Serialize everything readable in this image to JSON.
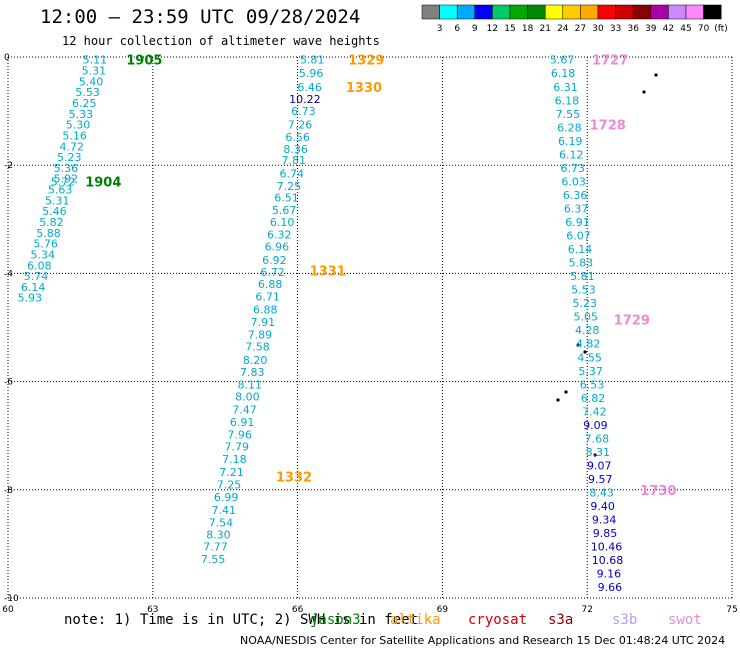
{
  "header": {
    "title": "12:00 — 23:59 UTC 09/28/2024",
    "subtitle": "12 hour collection of altimeter wave heights"
  },
  "colorbar": {
    "labels": [
      "3",
      "6",
      "9",
      "12",
      "15",
      "18",
      "21",
      "24",
      "27",
      "30",
      "33",
      "36",
      "39",
      "42",
      "45",
      "70"
    ],
    "unit": "(ft)",
    "colors": [
      "#7f7f7f",
      "#00ffff",
      "#00aaff",
      "#0000ff",
      "#00cc66",
      "#00aa00",
      "#008800",
      "#ffff00",
      "#ffcc00",
      "#ffaa00",
      "#ff0000",
      "#cc0000",
      "#880000",
      "#aa00aa",
      "#cc88ff",
      "#ff88ff",
      "#000000"
    ]
  },
  "footer": {
    "note": "note:  1) Time is in UTC; 2) SWH is in feet",
    "credit": "NOAA/NESDIS Center for Satellite Applications and Research   15 Dec 01:48:24 UTC 2024"
  },
  "legend": [
    {
      "name": "jason3",
      "color": "#008000"
    },
    {
      "name": "altika",
      "color": "#ff9900"
    },
    {
      "name": "cryosat",
      "color": "#cc0000"
    },
    {
      "name": "s3a",
      "color": "#880000"
    },
    {
      "name": "s3b",
      "color": "#bb99ee"
    },
    {
      "name": "swot",
      "color": "#ee88dd"
    }
  ],
  "chart_data": {
    "type": "scatter",
    "title": "12:00 — 23:59 UTC 09/28/2024",
    "subtitle": "12 hour collection of altimeter wave heights",
    "xlim": [
      60,
      75
    ],
    "ylim": [
      -10,
      0
    ],
    "xticks": [
      "60",
      "63",
      "66",
      "69",
      "72",
      "75"
    ],
    "yticks": [
      "0",
      "-2",
      "-4",
      "-6",
      "-8",
      "-10"
    ],
    "grid": true,
    "tracks": [
      {
        "satellite": "jason3",
        "color": "#00aacc",
        "times": [
          {
            "label": "1905",
            "x": 62.45,
            "y": -0.05,
            "color": "#008000"
          },
          {
            "label": "1904",
            "x": 61.6,
            "y": -2.3,
            "color": "#008000"
          }
        ],
        "points": [
          {
            "x": 61.8,
            "y": -0.05,
            "v": "5.11"
          },
          {
            "x": 61.78,
            "y": -0.25,
            "v": "5.31"
          },
          {
            "x": 61.72,
            "y": -0.45,
            "v": "5.40"
          },
          {
            "x": 61.65,
            "y": -0.65,
            "v": "5.53"
          },
          {
            "x": 61.58,
            "y": -0.85,
            "v": "6.25"
          },
          {
            "x": 61.51,
            "y": -1.05,
            "v": "5.33"
          },
          {
            "x": 61.45,
            "y": -1.25,
            "v": "5.30"
          },
          {
            "x": 61.38,
            "y": -1.45,
            "v": "5.16"
          },
          {
            "x": 61.32,
            "y": -1.65,
            "v": "4.72"
          },
          {
            "x": 61.27,
            "y": -1.85,
            "v": "5.23"
          },
          {
            "x": 61.2,
            "y": -2.05,
            "v": "5.36"
          },
          {
            "x": 61.2,
            "y": -2.25,
            "v": "5.92"
          },
          {
            "x": 61.14,
            "y": -2.3,
            "v": "5.72"
          },
          {
            "x": 61.08,
            "y": -2.45,
            "v": "5.63"
          },
          {
            "x": 61.02,
            "y": -2.65,
            "v": "5.31"
          },
          {
            "x": 60.96,
            "y": -2.85,
            "v": "5.46"
          },
          {
            "x": 60.9,
            "y": -3.05,
            "v": "5.82"
          },
          {
            "x": 60.84,
            "y": -3.25,
            "v": "5.88"
          },
          {
            "x": 60.78,
            "y": -3.45,
            "v": "5.76"
          },
          {
            "x": 60.72,
            "y": -3.65,
            "v": "5.34"
          },
          {
            "x": 60.65,
            "y": -3.85,
            "v": "6.08"
          },
          {
            "x": 60.58,
            "y": -4.05,
            "v": "5.74"
          },
          {
            "x": 60.52,
            "y": -4.25,
            "v": "6.14"
          },
          {
            "x": 60.45,
            "y": -4.45,
            "v": "5.93"
          }
        ]
      },
      {
        "satellite": "altika",
        "color": "#00aacc",
        "times": [
          {
            "label": "1329",
            "x": 67.05,
            "y": -0.05,
            "color": "#ff9900"
          },
          {
            "label": "1330",
            "x": 67.0,
            "y": -0.55,
            "color": "#ff9900"
          },
          {
            "label": "1331",
            "x": 66.25,
            "y": -3.95,
            "color": "#ff9900"
          },
          {
            "label": "1332",
            "x": 65.55,
            "y": -7.75,
            "color": "#ff9900"
          }
        ],
        "points": [
          {
            "x": 66.3,
            "y": -0.05,
            "v": "5.81"
          },
          {
            "x": 66.28,
            "y": -0.3,
            "v": "5.96"
          },
          {
            "x": 66.25,
            "y": -0.55,
            "v": "6.46"
          },
          {
            "x": 66.15,
            "y": -0.78,
            "v": "10.22",
            "c": "#000099"
          },
          {
            "x": 66.12,
            "y": -1.0,
            "v": "6.73"
          },
          {
            "x": 66.05,
            "y": -1.25,
            "v": "7.26"
          },
          {
            "x": 66.0,
            "y": -1.48,
            "v": "6.56"
          },
          {
            "x": 65.96,
            "y": -1.7,
            "v": "8.36"
          },
          {
            "x": 65.92,
            "y": -1.9,
            "v": "7.81"
          },
          {
            "x": 65.88,
            "y": -2.15,
            "v": "6.74"
          },
          {
            "x": 65.82,
            "y": -2.38,
            "v": "7.25"
          },
          {
            "x": 65.77,
            "y": -2.6,
            "v": "6.51"
          },
          {
            "x": 65.72,
            "y": -2.83,
            "v": "5.67"
          },
          {
            "x": 65.68,
            "y": -3.05,
            "v": "6.10"
          },
          {
            "x": 65.62,
            "y": -3.28,
            "v": "6.32"
          },
          {
            "x": 65.57,
            "y": -3.5,
            "v": "6.96"
          },
          {
            "x": 65.52,
            "y": -3.75,
            "v": "6.92"
          },
          {
            "x": 65.48,
            "y": -3.97,
            "v": "6.72"
          },
          {
            "x": 65.43,
            "y": -4.2,
            "v": "6.88"
          },
          {
            "x": 65.38,
            "y": -4.43,
            "v": "6.71"
          },
          {
            "x": 65.33,
            "y": -4.67,
            "v": "6.88"
          },
          {
            "x": 65.28,
            "y": -4.9,
            "v": "7.91"
          },
          {
            "x": 65.22,
            "y": -5.13,
            "v": "7.89"
          },
          {
            "x": 65.17,
            "y": -5.35,
            "v": "7.58"
          },
          {
            "x": 65.12,
            "y": -5.6,
            "v": "8.20"
          },
          {
            "x": 65.06,
            "y": -5.82,
            "v": "7.83"
          },
          {
            "x": 65.01,
            "y": -6.05,
            "v": "8.11"
          },
          {
            "x": 64.96,
            "y": -6.28,
            "v": "8.00"
          },
          {
            "x": 64.9,
            "y": -6.52,
            "v": "7.47"
          },
          {
            "x": 64.85,
            "y": -6.75,
            "v": "6.91"
          },
          {
            "x": 64.8,
            "y": -6.98,
            "v": "7.96"
          },
          {
            "x": 64.74,
            "y": -7.2,
            "v": "7.79"
          },
          {
            "x": 64.69,
            "y": -7.43,
            "v": "7.18"
          },
          {
            "x": 64.63,
            "y": -7.67,
            "v": "7.21"
          },
          {
            "x": 64.58,
            "y": -7.9,
            "v": "7.25"
          },
          {
            "x": 64.52,
            "y": -8.13,
            "v": "6.99"
          },
          {
            "x": 64.47,
            "y": -8.37,
            "v": "7.41"
          },
          {
            "x": 64.41,
            "y": -8.6,
            "v": "7.54"
          },
          {
            "x": 64.36,
            "y": -8.83,
            "v": "8.30"
          },
          {
            "x": 64.3,
            "y": -9.05,
            "v": "7.77"
          },
          {
            "x": 64.25,
            "y": -9.28,
            "v": "7.55"
          }
        ]
      },
      {
        "satellite": "swot",
        "color": "#00aacc",
        "times": [
          {
            "label": "1727",
            "x": 72.1,
            "y": -0.05,
            "color": "#ee88dd"
          },
          {
            "label": "1728",
            "x": 72.05,
            "y": -1.25,
            "color": "#ee88dd"
          },
          {
            "label": "1729",
            "x": 72.55,
            "y": -4.85,
            "color": "#ee88dd"
          },
          {
            "label": "1730",
            "x": 73.1,
            "y": -8.0,
            "color": "#ee88dd"
          }
        ],
        "points": [
          {
            "x": 71.48,
            "y": -0.05,
            "v": "5.67"
          },
          {
            "x": 71.5,
            "y": -0.3,
            "v": "6.18"
          },
          {
            "x": 71.55,
            "y": -0.55,
            "v": "6.31"
          },
          {
            "x": 71.58,
            "y": -0.8,
            "v": "6.18"
          },
          {
            "x": 71.6,
            "y": -1.05,
            "v": "7.55"
          },
          {
            "x": 71.63,
            "y": -1.3,
            "v": "6.28"
          },
          {
            "x": 71.65,
            "y": -1.55,
            "v": "6.19"
          },
          {
            "x": 71.67,
            "y": -1.8,
            "v": "6.12"
          },
          {
            "x": 71.7,
            "y": -2.05,
            "v": "6.73"
          },
          {
            "x": 71.72,
            "y": -2.3,
            "v": "6.03"
          },
          {
            "x": 71.75,
            "y": -2.55,
            "v": "6.36"
          },
          {
            "x": 71.77,
            "y": -2.8,
            "v": "6.37"
          },
          {
            "x": 71.8,
            "y": -3.05,
            "v": "6.91"
          },
          {
            "x": 71.82,
            "y": -3.3,
            "v": "6.07"
          },
          {
            "x": 71.85,
            "y": -3.55,
            "v": "6.14"
          },
          {
            "x": 71.87,
            "y": -3.8,
            "v": "5.83"
          },
          {
            "x": 71.9,
            "y": -4.05,
            "v": "5.81"
          },
          {
            "x": 71.92,
            "y": -4.3,
            "v": "5.53"
          },
          {
            "x": 71.95,
            "y": -4.55,
            "v": "5.23"
          },
          {
            "x": 71.97,
            "y": -4.8,
            "v": "5.05"
          },
          {
            "x": 72.0,
            "y": -5.05,
            "v": "4.28"
          },
          {
            "x": 72.02,
            "y": -5.3,
            "v": "4.82"
          },
          {
            "x": 72.05,
            "y": -5.55,
            "v": "4.55"
          },
          {
            "x": 72.07,
            "y": -5.8,
            "v": "5.37"
          },
          {
            "x": 72.1,
            "y": -6.05,
            "v": "6.53"
          },
          {
            "x": 72.12,
            "y": -6.3,
            "v": "6.82"
          },
          {
            "x": 72.15,
            "y": -6.55,
            "v": "7.42"
          },
          {
            "x": 72.17,
            "y": -6.8,
            "v": "9.09",
            "c": "#0000cc"
          },
          {
            "x": 72.2,
            "y": -7.05,
            "v": "7.68"
          },
          {
            "x": 72.22,
            "y": -7.3,
            "v": "8.31"
          },
          {
            "x": 72.25,
            "y": -7.55,
            "v": "9.07",
            "c": "#0000cc"
          },
          {
            "x": 72.27,
            "y": -7.8,
            "v": "9.57",
            "c": "#0000cc"
          },
          {
            "x": 72.3,
            "y": -8.05,
            "v": "8.43"
          },
          {
            "x": 72.32,
            "y": -8.3,
            "v": "9.40",
            "c": "#0000cc"
          },
          {
            "x": 72.35,
            "y": -8.55,
            "v": "9.34",
            "c": "#0000cc"
          },
          {
            "x": 72.37,
            "y": -8.8,
            "v": "9.85",
            "c": "#0000cc"
          },
          {
            "x": 72.4,
            "y": -9.05,
            "v": "10.46",
            "c": "#000099"
          },
          {
            "x": 72.42,
            "y": -9.3,
            "v": "10.68",
            "c": "#000099"
          },
          {
            "x": 72.45,
            "y": -9.55,
            "v": "9.16",
            "c": "#0000cc"
          },
          {
            "x": 72.47,
            "y": -9.8,
            "v": "9.66",
            "c": "#0000cc"
          }
        ]
      }
    ]
  }
}
